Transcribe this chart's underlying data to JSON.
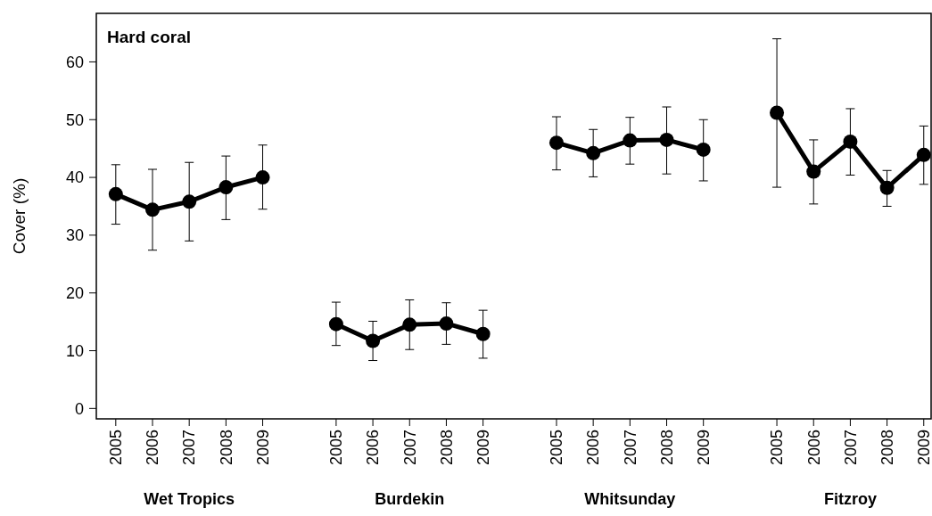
{
  "chart_data": {
    "type": "line",
    "title": "Hard coral",
    "ylabel": "Cover (%)",
    "categories": [
      "2005",
      "2006",
      "2007",
      "2008",
      "2009",
      null,
      "2005",
      "2006",
      "2007",
      "2008",
      "2009",
      null,
      "2005",
      "2006",
      "2007",
      "2008",
      "2009",
      null,
      "2005",
      "2006",
      "2007",
      "2008",
      "2009"
    ],
    "annotations": [
      "Wet Tropics",
      "Burdekin",
      "Whitsunday",
      "Fitzroy"
    ],
    "series": [
      {
        "color": "#000000",
        "values": [
          37.1,
          34.4,
          35.8,
          38.3,
          40.0,
          null,
          14.6,
          11.7,
          14.5,
          14.7,
          12.9,
          null,
          46.0,
          44.2,
          46.4,
          46.5,
          44.8,
          null,
          51.2,
          41.0,
          46.2,
          38.2,
          43.9
        ],
        "errors": [
          [
            31.9,
            42.2
          ],
          [
            27.4,
            41.4
          ],
          [
            29.0,
            42.6
          ],
          [
            32.7,
            43.7
          ],
          [
            34.5,
            45.6
          ],
          null,
          [
            10.9,
            18.4
          ],
          [
            8.3,
            15.1
          ],
          [
            10.2,
            18.8
          ],
          [
            11.1,
            18.3
          ],
          [
            8.7,
            17.0
          ],
          null,
          [
            41.3,
            50.5
          ],
          [
            40.1,
            48.3
          ],
          [
            42.3,
            50.4
          ],
          [
            40.6,
            52.2
          ],
          [
            39.4,
            50.0
          ],
          null,
          [
            38.3,
            64.0
          ],
          [
            35.4,
            46.5
          ],
          [
            40.4,
            51.9
          ],
          [
            35.0,
            41.2
          ],
          [
            38.8,
            48.9
          ]
        ]
      }
    ],
    "ylim": [
      -1.8,
      68.4
    ],
    "yticks": [
      0,
      10,
      20,
      30,
      40,
      50,
      60
    ],
    "marker": "circle",
    "line_style": "solid",
    "grid": false
  }
}
